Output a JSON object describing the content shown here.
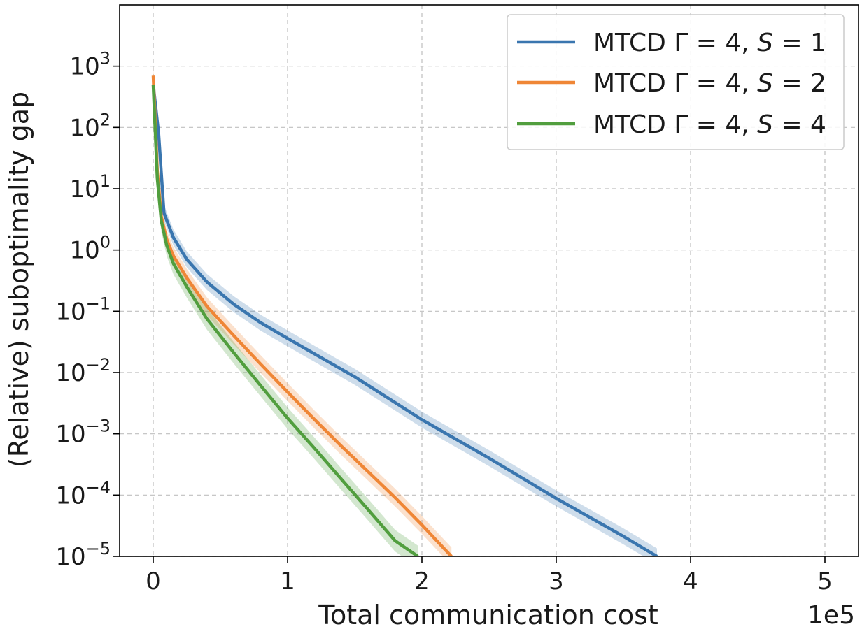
{
  "chart_data": {
    "type": "line",
    "title": "",
    "xlabel": "Total communication cost",
    "ylabel": "(Relative) suboptimality gap",
    "x_offset_label": "1e5",
    "xscale": "linear",
    "yscale": "log",
    "xlim": [
      -0.25,
      5.25
    ],
    "ylim": [
      1e-05,
      10000
    ],
    "grid": true,
    "legend_position": "upper right",
    "x_ticks": [
      {
        "value": 0,
        "label": "0"
      },
      {
        "value": 1,
        "label": "1"
      },
      {
        "value": 2,
        "label": "2"
      },
      {
        "value": 3,
        "label": "3"
      },
      {
        "value": 4,
        "label": "4"
      },
      {
        "value": 5,
        "label": "5"
      }
    ],
    "y_ticks": [
      {
        "value": 1000,
        "base": "10",
        "exp": "3"
      },
      {
        "value": 100,
        "base": "10",
        "exp": "2"
      },
      {
        "value": 10,
        "base": "10",
        "exp": "1"
      },
      {
        "value": 1,
        "base": "10",
        "exp": "0"
      },
      {
        "value": 0.1,
        "base": "10",
        "exp": "−1"
      },
      {
        "value": 0.01,
        "base": "10",
        "exp": "−2"
      },
      {
        "value": 0.001,
        "base": "10",
        "exp": "−3"
      },
      {
        "value": 0.0001,
        "base": "10",
        "exp": "−4"
      },
      {
        "value": 1e-05,
        "base": "10",
        "exp": "−5"
      }
    ],
    "series": [
      {
        "name": "MTCD Γ = 4, S = 1",
        "legend_prefix": "MTCD Γ = 4, ",
        "legend_var": "S",
        "legend_suffix": " = 1",
        "color": "#3a76af",
        "band_factor": 1.35,
        "x": [
          0,
          0.04,
          0.08,
          0.15,
          0.25,
          0.4,
          0.6,
          0.8,
          1.0,
          1.5,
          2.0,
          2.5,
          3.0,
          3.5,
          3.75
        ],
        "y": [
          500,
          80,
          4,
          1.6,
          0.7,
          0.3,
          0.13,
          0.065,
          0.036,
          0.0085,
          0.0017,
          0.0004,
          8.82e-05,
          2.12e-05,
          1e-05
        ]
      },
      {
        "name": "MTCD Γ = 4, S = 2",
        "legend_prefix": "MTCD Γ = 4, ",
        "legend_var": "S",
        "legend_suffix": " = 2",
        "color": "#ef8636",
        "band_factor": 1.4,
        "x": [
          0,
          0.03,
          0.06,
          0.1,
          0.15,
          0.25,
          0.4,
          0.6,
          0.8,
          1.0,
          1.2,
          1.4,
          1.6,
          1.8,
          2.0,
          2.22
        ],
        "y": [
          700,
          20,
          3.5,
          1.5,
          0.8,
          0.35,
          0.12,
          0.04,
          0.0137,
          0.0048,
          0.00172,
          0.00063,
          0.00024,
          9.1e-05,
          3.25e-05,
          1e-05
        ]
      },
      {
        "name": "MTCD Γ = 4, S = 4",
        "legend_prefix": "MTCD Γ = 4, ",
        "legend_var": "S",
        "legend_suffix": " = 4",
        "color": "#519e3e",
        "band_factor": 1.5,
        "x": [
          0,
          0.03,
          0.06,
          0.1,
          0.15,
          0.25,
          0.4,
          0.6,
          0.8,
          1.0,
          1.2,
          1.4,
          1.6,
          1.8,
          1.97
        ],
        "y": [
          500,
          15,
          3,
          1.2,
          0.6,
          0.25,
          0.075,
          0.021,
          0.0061,
          0.0018,
          0.00058,
          0.000182,
          5.76e-05,
          1.8e-05,
          1e-05
        ]
      }
    ]
  }
}
